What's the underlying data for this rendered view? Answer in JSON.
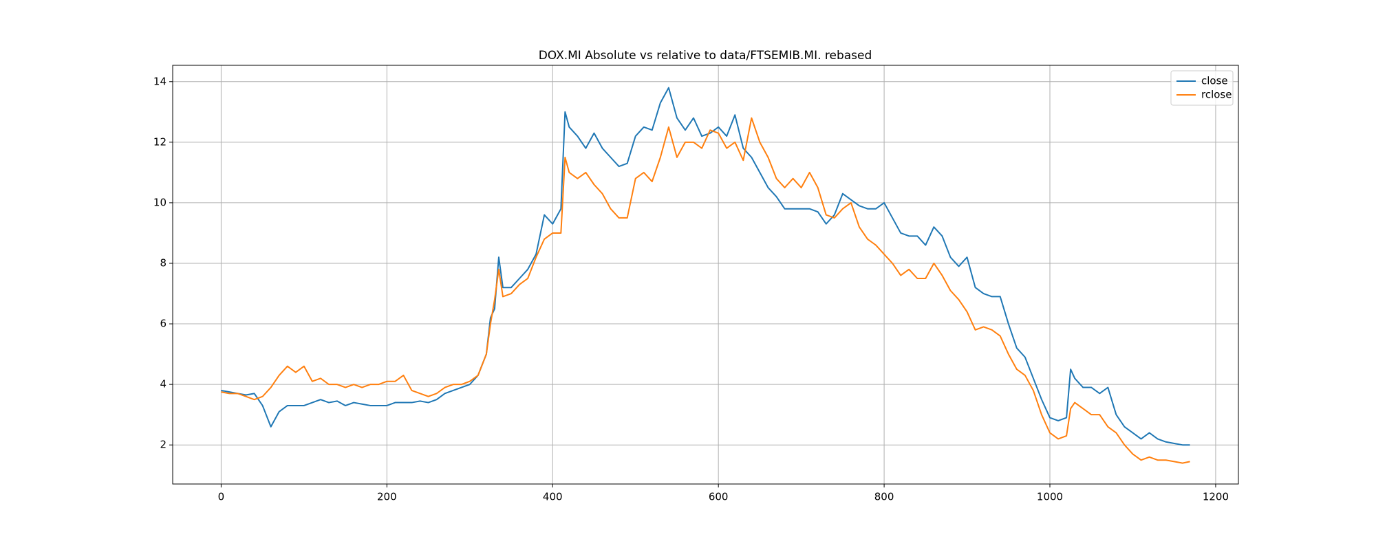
{
  "chart_data": {
    "type": "line",
    "title": "DOX.MI Absolute vs relative to data/FTSEMIB.MI. rebased",
    "x": [
      0,
      10,
      20,
      30,
      40,
      50,
      60,
      70,
      80,
      90,
      100,
      110,
      120,
      130,
      140,
      150,
      160,
      170,
      180,
      190,
      200,
      210,
      220,
      230,
      240,
      250,
      260,
      270,
      280,
      290,
      300,
      310,
      320,
      325,
      330,
      335,
      340,
      350,
      360,
      370,
      380,
      390,
      400,
      410,
      415,
      420,
      430,
      440,
      450,
      460,
      470,
      480,
      490,
      500,
      510,
      520,
      530,
      540,
      550,
      560,
      570,
      580,
      590,
      600,
      610,
      620,
      630,
      640,
      650,
      660,
      670,
      680,
      690,
      700,
      710,
      720,
      730,
      740,
      750,
      760,
      770,
      780,
      790,
      800,
      810,
      820,
      830,
      840,
      850,
      860,
      870,
      880,
      890,
      900,
      910,
      920,
      930,
      940,
      950,
      960,
      970,
      980,
      990,
      1000,
      1010,
      1020,
      1025,
      1030,
      1040,
      1050,
      1060,
      1070,
      1080,
      1090,
      1100,
      1110,
      1120,
      1130,
      1140,
      1150,
      1160,
      1169
    ],
    "series": [
      {
        "name": "close",
        "color": "#1f77b4",
        "values": [
          3.8,
          3.75,
          3.7,
          3.65,
          3.7,
          3.3,
          2.6,
          3.1,
          3.3,
          3.3,
          3.3,
          3.4,
          3.5,
          3.4,
          3.45,
          3.3,
          3.4,
          3.35,
          3.3,
          3.3,
          3.3,
          3.4,
          3.4,
          3.4,
          3.45,
          3.4,
          3.5,
          3.7,
          3.8,
          3.9,
          4.0,
          4.3,
          5.0,
          6.2,
          6.5,
          8.2,
          7.2,
          7.2,
          7.5,
          7.8,
          8.3,
          9.6,
          9.3,
          9.8,
          13.0,
          12.5,
          12.2,
          11.8,
          12.3,
          11.8,
          11.5,
          11.2,
          11.3,
          12.2,
          12.5,
          12.4,
          13.3,
          13.8,
          12.8,
          12.4,
          12.8,
          12.2,
          12.3,
          12.5,
          12.2,
          12.9,
          11.8,
          11.5,
          11.0,
          10.5,
          10.2,
          9.8,
          9.8,
          9.8,
          9.8,
          9.7,
          9.3,
          9.6,
          10.3,
          10.1,
          9.9,
          9.8,
          9.8,
          10.0,
          9.5,
          9.0,
          8.9,
          8.9,
          8.6,
          9.2,
          8.9,
          8.2,
          7.9,
          8.2,
          7.2,
          7.0,
          6.9,
          6.9,
          6.0,
          5.2,
          4.9,
          4.2,
          3.5,
          2.9,
          2.8,
          2.9,
          4.5,
          4.2,
          3.9,
          3.9,
          3.7,
          3.9,
          3.0,
          2.6,
          2.4,
          2.2,
          2.4,
          2.2,
          2.1,
          2.05,
          2.0,
          2.0
        ]
      },
      {
        "name": "rclose",
        "color": "#ff7f0e",
        "values": [
          3.75,
          3.7,
          3.7,
          3.6,
          3.5,
          3.6,
          3.9,
          4.3,
          4.6,
          4.4,
          4.6,
          4.1,
          4.2,
          4.0,
          4.0,
          3.9,
          4.0,
          3.9,
          4.0,
          4.0,
          4.1,
          4.1,
          4.3,
          3.8,
          3.7,
          3.6,
          3.7,
          3.9,
          4.0,
          4.0,
          4.1,
          4.3,
          5.0,
          6.0,
          6.8,
          7.8,
          6.9,
          7.0,
          7.3,
          7.5,
          8.2,
          8.8,
          9.0,
          9.0,
          11.5,
          11.0,
          10.8,
          11.0,
          10.6,
          10.3,
          9.8,
          9.5,
          9.5,
          10.8,
          11.0,
          10.7,
          11.5,
          12.5,
          11.5,
          12.0,
          12.0,
          11.8,
          12.4,
          12.3,
          11.8,
          12.0,
          11.4,
          12.8,
          12.0,
          11.5,
          10.8,
          10.5,
          10.8,
          10.5,
          11.0,
          10.5,
          9.6,
          9.5,
          9.8,
          10.0,
          9.2,
          8.8,
          8.6,
          8.3,
          8.0,
          7.6,
          7.8,
          7.5,
          7.5,
          8.0,
          7.6,
          7.1,
          6.8,
          6.4,
          5.8,
          5.9,
          5.8,
          5.6,
          5.0,
          4.5,
          4.3,
          3.8,
          3.0,
          2.4,
          2.2,
          2.3,
          3.2,
          3.4,
          3.2,
          3.0,
          3.0,
          2.6,
          2.4,
          2.0,
          1.7,
          1.5,
          1.6,
          1.5,
          1.5,
          1.45,
          1.4,
          1.45
        ]
      }
    ],
    "xlim": [
      -58.45,
      1227.45
    ],
    "xticks": [
      0,
      200,
      400,
      600,
      800,
      1000,
      1200
    ],
    "ylim": [
      0.71,
      14.54
    ],
    "yticks": [
      2,
      4,
      6,
      8,
      10,
      12,
      14
    ],
    "grid": true,
    "legend": "upper right"
  }
}
